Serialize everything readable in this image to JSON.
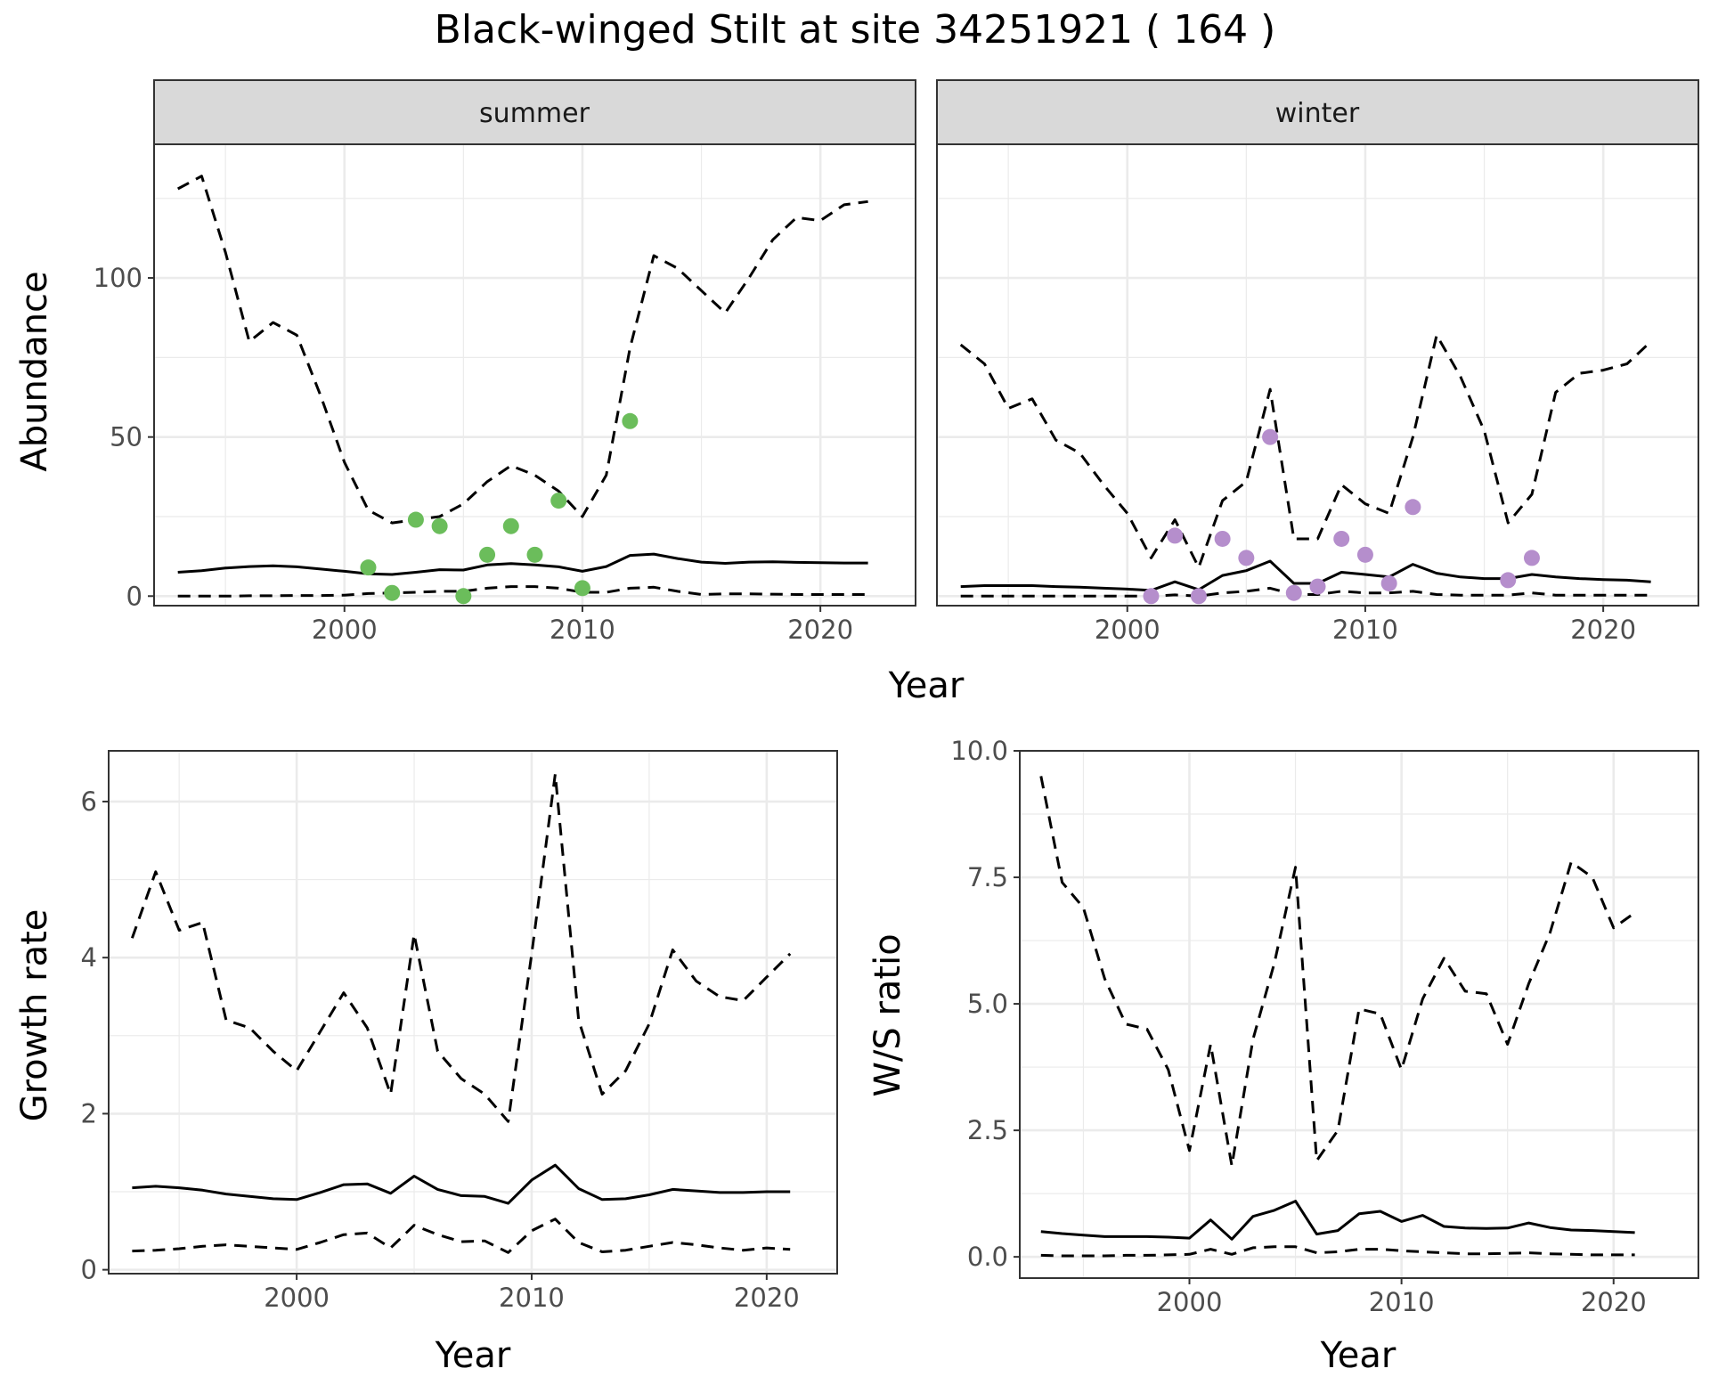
{
  "title": "Black-winged Stilt at site 34251921 ( 164 )",
  "colors": {
    "summer_points": "#6bbd5b",
    "winter_points": "#b58ecc",
    "strip_fill": "#d9d9d9",
    "line": "#000000",
    "grid": "#ebebeb"
  },
  "chart_data": [
    {
      "type": "line",
      "panel": "summer",
      "strip_label": "summer",
      "ylabel": "Abundance",
      "xlabel": "Year",
      "xlim": [
        1992,
        2024
      ],
      "ylim": [
        -3,
        142
      ],
      "x_ticks": [
        2000,
        2010,
        2020
      ],
      "y_ticks": [
        0,
        50,
        100
      ],
      "y_tick_labels": [
        "0",
        "50",
        "100"
      ],
      "grid": true,
      "series": [
        {
          "role": "mean",
          "style": "solid",
          "x": [
            1993,
            1994,
            1995,
            1996,
            1997,
            1998,
            1999,
            2000,
            2001,
            2002,
            2003,
            2004,
            2005,
            2006,
            2007,
            2008,
            2009,
            2010,
            2011,
            2012,
            2013,
            2014,
            2015,
            2016,
            2017,
            2018,
            2019,
            2020,
            2021,
            2022
          ],
          "y": [
            7.5,
            8,
            8.8,
            9.3,
            9.5,
            9.2,
            8.5,
            7.8,
            7,
            6.8,
            7.5,
            8.3,
            8.2,
            9.8,
            10.2,
            9.8,
            9.2,
            7.8,
            9.3,
            12.8,
            13.2,
            11.8,
            10.7,
            10.3,
            10.7,
            10.8,
            10.6,
            10.5,
            10.4,
            10.4
          ]
        },
        {
          "role": "upper",
          "style": "dashed",
          "x": [
            1993,
            1994,
            1995,
            1996,
            1997,
            1998,
            1999,
            2000,
            2001,
            2002,
            2003,
            2004,
            2005,
            2006,
            2007,
            2008,
            2009,
            2010,
            2011,
            2012,
            2013,
            2014,
            2015,
            2016,
            2017,
            2018,
            2019,
            2020,
            2021,
            2022
          ],
          "y": [
            128,
            132,
            108,
            80,
            86,
            82,
            63,
            42,
            27,
            23,
            24,
            25,
            29,
            36,
            41,
            38,
            33,
            25,
            38,
            78,
            107,
            103,
            96,
            89,
            100,
            112,
            119,
            118,
            123,
            124
          ]
        },
        {
          "role": "lower",
          "style": "dashed",
          "x": [
            1993,
            1994,
            1995,
            1996,
            1997,
            1998,
            1999,
            2000,
            2001,
            2002,
            2003,
            2004,
            2005,
            2006,
            2007,
            2008,
            2009,
            2010,
            2011,
            2012,
            2013,
            2014,
            2015,
            2016,
            2017,
            2018,
            2019,
            2020,
            2021,
            2022
          ],
          "y": [
            0,
            0,
            0,
            0.1,
            0.1,
            0.2,
            0.2,
            0.3,
            0.8,
            1,
            1.2,
            1.5,
            1.5,
            2.5,
            3,
            3,
            2.5,
            1.2,
            1.2,
            2.5,
            2.8,
            1.5,
            0.5,
            0.7,
            0.7,
            0.6,
            0.5,
            0.5,
            0.5,
            0.5
          ]
        }
      ],
      "points": {
        "x": [
          2001,
          2002,
          2003,
          2004,
          2005,
          2006,
          2007,
          2008,
          2009,
          2010,
          2012
        ],
        "y": [
          9,
          1,
          24,
          22,
          0,
          13,
          22,
          13,
          30,
          2.5,
          55
        ]
      }
    },
    {
      "type": "line",
      "panel": "winter",
      "strip_label": "winter",
      "xlim": [
        1992,
        2024
      ],
      "ylim": [
        -3,
        142
      ],
      "x_ticks": [
        2000,
        2010,
        2020
      ],
      "grid": true,
      "series": [
        {
          "role": "mean",
          "style": "solid",
          "x": [
            1993,
            1994,
            1995,
            1996,
            1997,
            1998,
            1999,
            2000,
            2001,
            2002,
            2003,
            2004,
            2005,
            2006,
            2007,
            2008,
            2009,
            2010,
            2011,
            2012,
            2013,
            2014,
            2015,
            2016,
            2017,
            2018,
            2019,
            2020,
            2021,
            2022
          ],
          "y": [
            3,
            3.3,
            3.3,
            3.3,
            3,
            2.8,
            2.5,
            2.2,
            1.8,
            4.5,
            2,
            6.5,
            8,
            11,
            4,
            4,
            7.5,
            6.8,
            6,
            10,
            7.2,
            6,
            5.5,
            5.5,
            6.8,
            6,
            5.5,
            5.2,
            5,
            4.5
          ]
        },
        {
          "role": "upper",
          "style": "dashed",
          "x": [
            1993,
            1994,
            1995,
            1996,
            1997,
            1998,
            1999,
            2000,
            2001,
            2002,
            2003,
            2004,
            2005,
            2006,
            2007,
            2008,
            2009,
            2010,
            2011,
            2012,
            2013,
            2014,
            2015,
            2016,
            2017,
            2018,
            2019,
            2020,
            2021,
            2022
          ],
          "y": [
            79,
            73,
            59,
            62,
            49,
            45,
            35,
            26,
            12,
            24,
            9,
            30,
            36,
            65,
            18,
            18,
            35,
            29,
            26,
            50,
            82,
            69,
            52,
            23,
            32,
            64,
            70,
            71,
            73,
            80
          ]
        },
        {
          "role": "lower",
          "style": "dashed",
          "x": [
            1993,
            1994,
            1995,
            1996,
            1997,
            1998,
            1999,
            2000,
            2001,
            2002,
            2003,
            2004,
            2005,
            2006,
            2007,
            2008,
            2009,
            2010,
            2011,
            2012,
            2013,
            2014,
            2015,
            2016,
            2017,
            2018,
            2019,
            2020,
            2021,
            2022
          ],
          "y": [
            0,
            0,
            0,
            0,
            0,
            0,
            0,
            0,
            0,
            0.4,
            0,
            1,
            1.5,
            2.5,
            0.5,
            0.5,
            1.5,
            1,
            1,
            1.5,
            0.5,
            0.3,
            0.3,
            0.3,
            1,
            0.3,
            0.3,
            0.3,
            0.3,
            0.3
          ]
        }
      ],
      "points": {
        "x": [
          2001,
          2002,
          2003,
          2004,
          2005,
          2006,
          2007,
          2008,
          2009,
          2010,
          2011,
          2012,
          2016,
          2017
        ],
        "y": [
          0,
          19,
          0,
          18,
          12,
          50,
          1,
          3,
          18,
          13,
          4,
          28,
          5,
          12
        ]
      }
    },
    {
      "type": "line",
      "panel": "growth",
      "xlabel": "Year",
      "ylabel": "Growth rate",
      "xlim": [
        1992,
        2023
      ],
      "ylim": [
        -0.05,
        6.65
      ],
      "x_ticks": [
        2000,
        2010,
        2020
      ],
      "y_ticks": [
        0,
        2,
        4,
        6
      ],
      "y_tick_labels": [
        "0",
        "2",
        "4",
        "6"
      ],
      "grid": true,
      "series": [
        {
          "role": "mean",
          "style": "solid",
          "x": [
            1993,
            1994,
            1995,
            1996,
            1997,
            1998,
            1999,
            2000,
            2001,
            2002,
            2003,
            2004,
            2005,
            2006,
            2007,
            2008,
            2009,
            2010,
            2011,
            2012,
            2013,
            2014,
            2015,
            2016,
            2017,
            2018,
            2019,
            2020,
            2021
          ],
          "y": [
            1.05,
            1.07,
            1.05,
            1.02,
            0.97,
            0.94,
            0.91,
            0.9,
            0.99,
            1.09,
            1.1,
            0.98,
            1.2,
            1.03,
            0.95,
            0.94,
            0.85,
            1.15,
            1.34,
            1.04,
            0.9,
            0.91,
            0.96,
            1.03,
            1.01,
            0.99,
            0.99,
            1,
            1
          ]
        },
        {
          "role": "upper",
          "style": "dashed",
          "x": [
            1993,
            1994,
            1995,
            1996,
            1997,
            1998,
            1999,
            2000,
            2001,
            2002,
            2003,
            2004,
            2005,
            2006,
            2007,
            2008,
            2009,
            2010,
            2011,
            2012,
            2013,
            2014,
            2015,
            2016,
            2017,
            2018,
            2019,
            2020,
            2021
          ],
          "y": [
            4.25,
            5.1,
            4.35,
            4.45,
            3.2,
            3.1,
            2.8,
            2.55,
            3.05,
            3.55,
            3.1,
            2.25,
            4.3,
            2.8,
            2.45,
            2.25,
            1.9,
            4.05,
            6.35,
            3.2,
            2.25,
            2.55,
            3.15,
            4.1,
            3.7,
            3.5,
            3.45,
            3.75,
            4.05
          ]
        },
        {
          "role": "lower",
          "style": "dashed",
          "x": [
            1993,
            1994,
            1995,
            1996,
            1997,
            1998,
            1999,
            2000,
            2001,
            2002,
            2003,
            2004,
            2005,
            2006,
            2007,
            2008,
            2009,
            2010,
            2011,
            2012,
            2013,
            2014,
            2015,
            2016,
            2017,
            2018,
            2019,
            2020,
            2021
          ],
          "y": [
            0.24,
            0.25,
            0.27,
            0.3,
            0.32,
            0.3,
            0.28,
            0.26,
            0.35,
            0.45,
            0.47,
            0.28,
            0.57,
            0.45,
            0.36,
            0.37,
            0.22,
            0.5,
            0.65,
            0.35,
            0.23,
            0.25,
            0.3,
            0.35,
            0.32,
            0.28,
            0.25,
            0.28,
            0.26
          ]
        }
      ]
    },
    {
      "type": "line",
      "panel": "ws_ratio",
      "xlabel": "Year",
      "ylabel": "W/S ratio",
      "xlim": [
        1992,
        2024
      ],
      "ylim": [
        -0.42,
        10.0
      ],
      "x_ticks": [
        2000,
        2010,
        2020
      ],
      "y_ticks": [
        0,
        2.5,
        5,
        7.5,
        10
      ],
      "y_tick_labels": [
        "0.0",
        "2.5",
        "5.0",
        "7.5",
        "10.0"
      ],
      "grid": true,
      "series": [
        {
          "role": "mean",
          "style": "solid",
          "x": [
            1993,
            1994,
            1995,
            1996,
            1997,
            1998,
            1999,
            2000,
            2001,
            2002,
            2003,
            2004,
            2005,
            2006,
            2007,
            2008,
            2009,
            2010,
            2011,
            2012,
            2013,
            2014,
            2015,
            2016,
            2017,
            2018,
            2019,
            2020,
            2021
          ],
          "y": [
            0.5,
            0.46,
            0.43,
            0.4,
            0.4,
            0.4,
            0.39,
            0.37,
            0.73,
            0.35,
            0.8,
            0.92,
            1.1,
            0.45,
            0.52,
            0.85,
            0.9,
            0.7,
            0.82,
            0.6,
            0.57,
            0.56,
            0.57,
            0.67,
            0.58,
            0.53,
            0.52,
            0.5,
            0.48
          ]
        },
        {
          "role": "upper",
          "style": "dashed",
          "x": [
            1993,
            1994,
            1995,
            1996,
            1997,
            1998,
            1999,
            2000,
            2001,
            2002,
            2003,
            2004,
            2005,
            2006,
            2007,
            2008,
            2009,
            2010,
            2011,
            2012,
            2013,
            2014,
            2015,
            2016,
            2017,
            2018,
            2019,
            2020,
            2021
          ],
          "y": [
            9.5,
            7.4,
            6.9,
            5.5,
            4.6,
            4.5,
            3.7,
            2.1,
            4.2,
            1.8,
            4.3,
            5.8,
            7.7,
            1.9,
            2.5,
            4.9,
            4.8,
            3.7,
            5.1,
            5.9,
            5.25,
            5.2,
            4.2,
            5.4,
            6.4,
            7.8,
            7.5,
            6.5,
            6.8
          ]
        },
        {
          "role": "lower",
          "style": "dashed",
          "x": [
            1993,
            1994,
            1995,
            1996,
            1997,
            1998,
            1999,
            2000,
            2001,
            2002,
            2003,
            2004,
            2005,
            2006,
            2007,
            2008,
            2009,
            2010,
            2011,
            2012,
            2013,
            2014,
            2015,
            2016,
            2017,
            2018,
            2019,
            2020,
            2021
          ],
          "y": [
            0.03,
            0.02,
            0.02,
            0.02,
            0.03,
            0.03,
            0.04,
            0.05,
            0.15,
            0.05,
            0.18,
            0.2,
            0.2,
            0.08,
            0.1,
            0.15,
            0.15,
            0.12,
            0.1,
            0.08,
            0.06,
            0.06,
            0.07,
            0.08,
            0.06,
            0.05,
            0.04,
            0.04,
            0.04
          ]
        }
      ]
    }
  ]
}
